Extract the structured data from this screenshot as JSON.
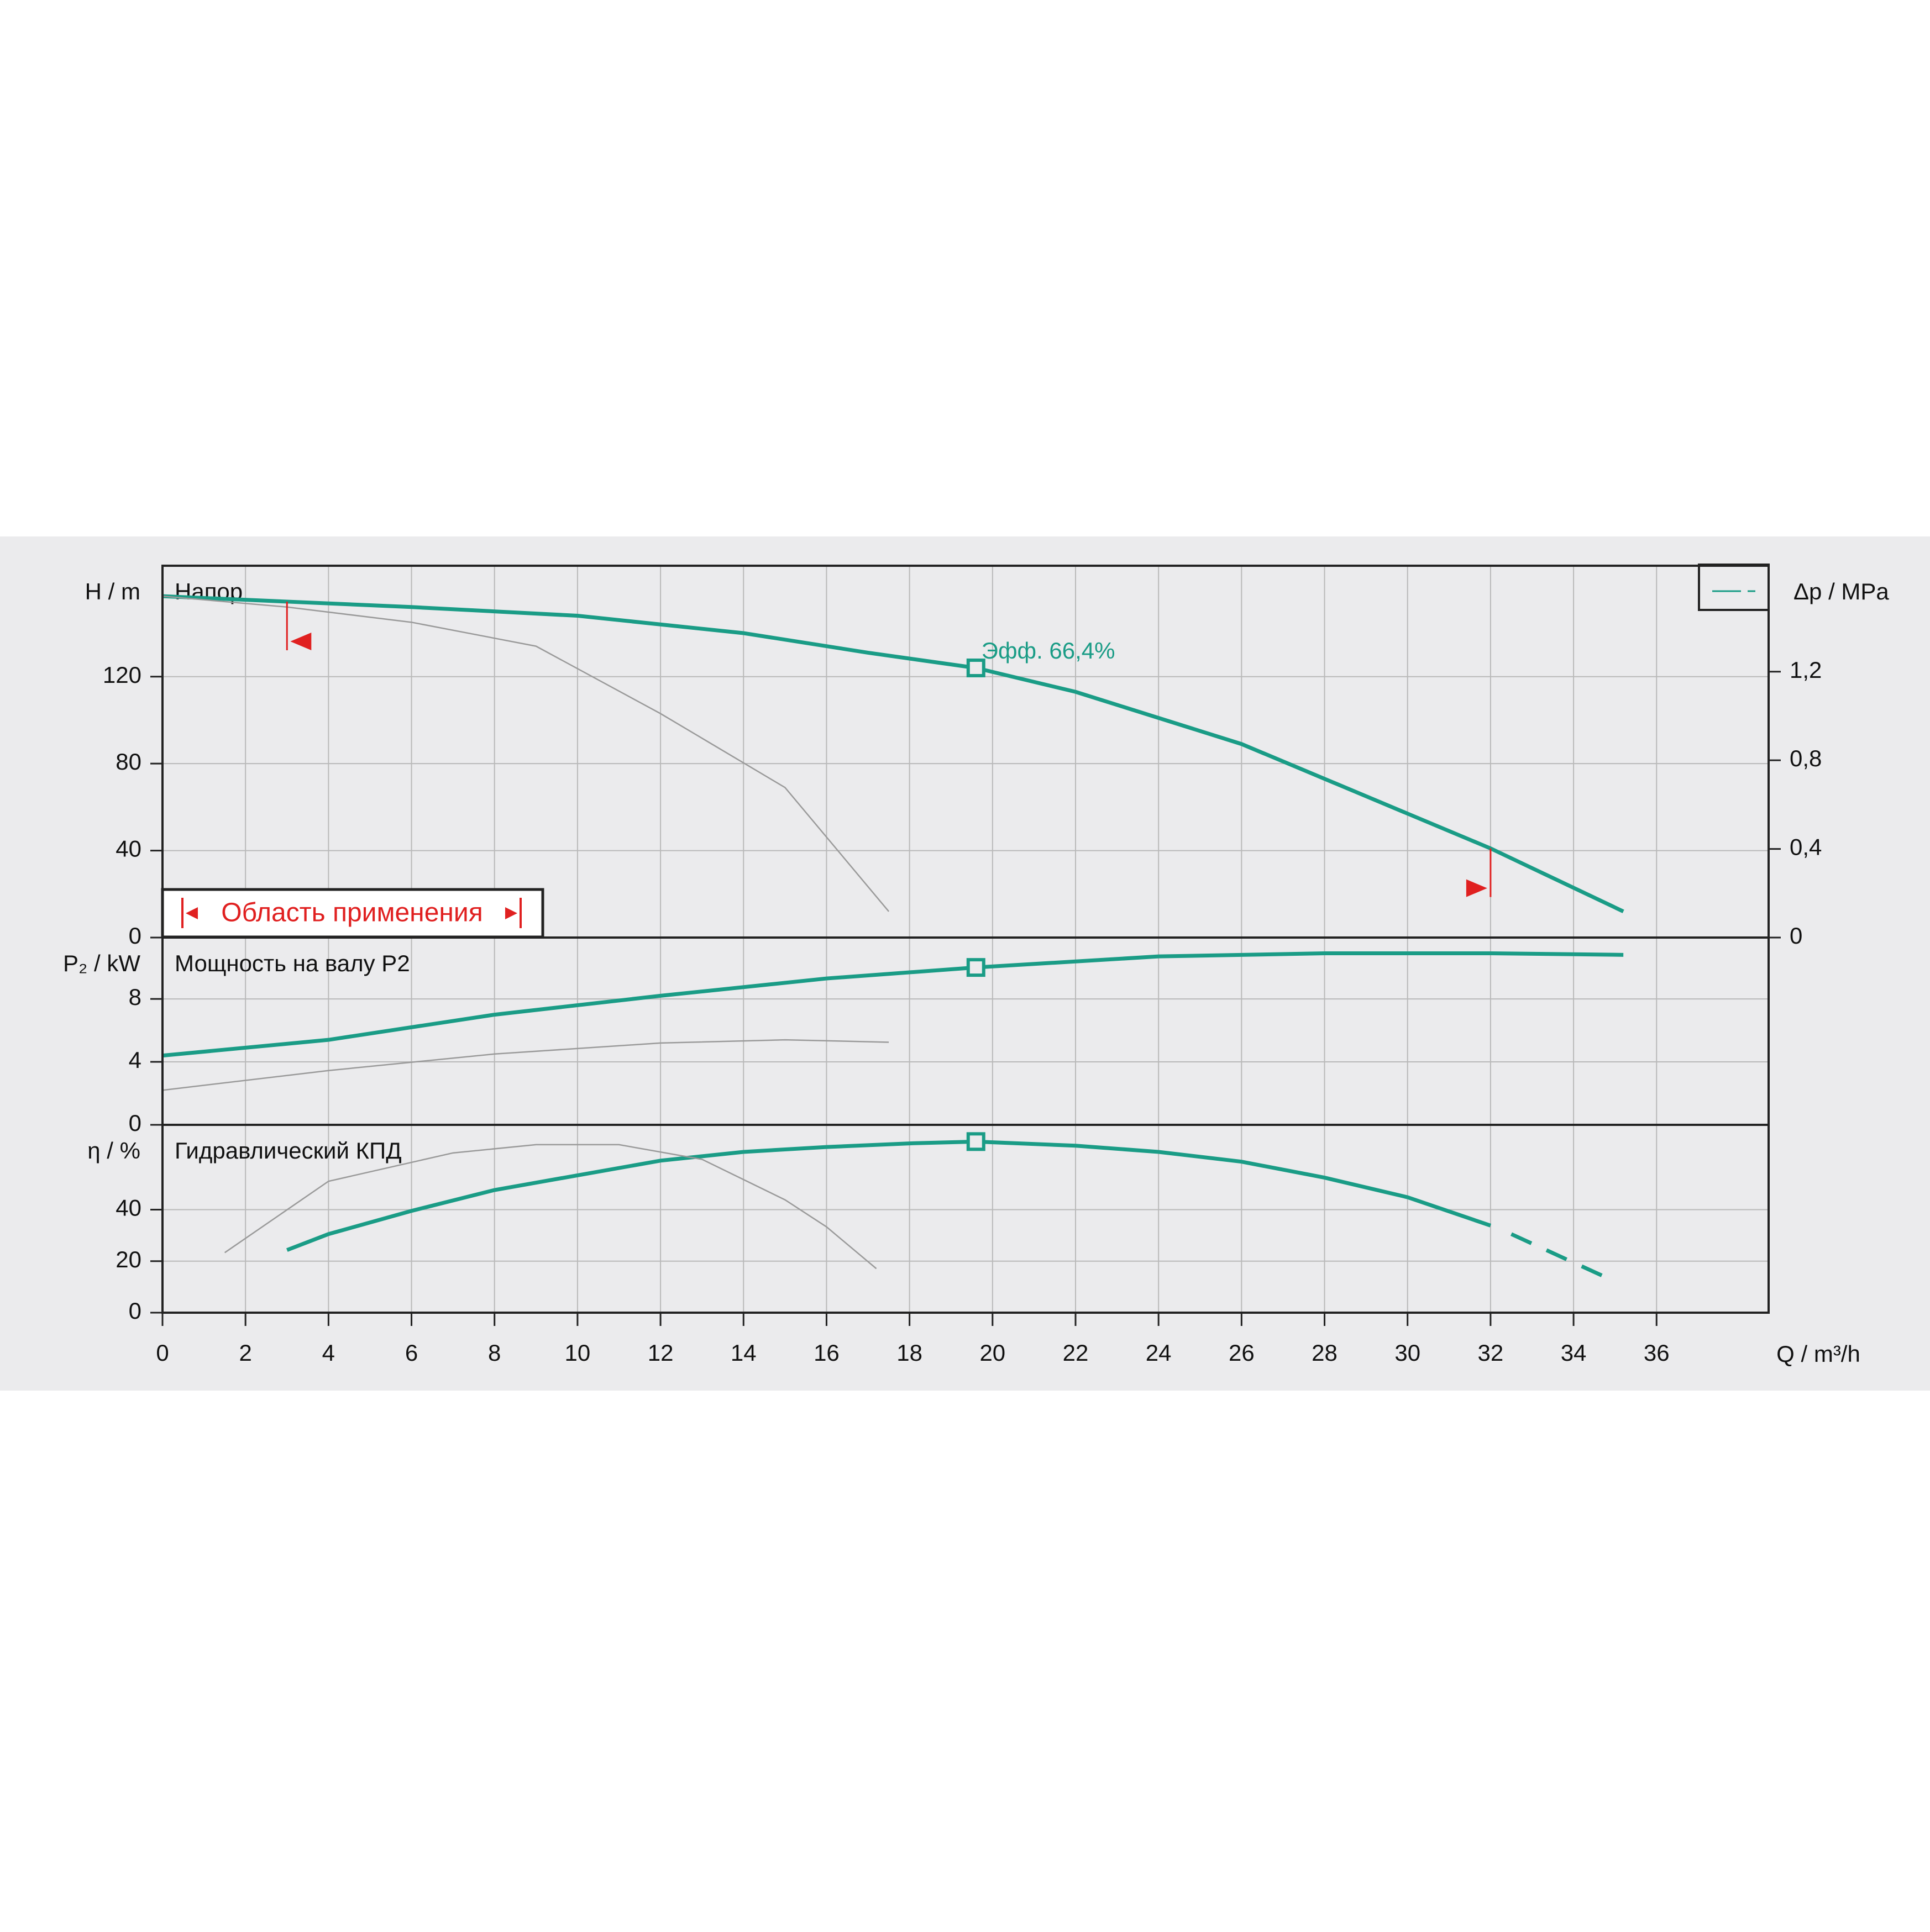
{
  "chart_data": {
    "type": "line",
    "x_label": "Q / m³/h",
    "xlim": [
      0,
      38.7
    ],
    "xticks": [
      0,
      2,
      4,
      6,
      8,
      10,
      12,
      14,
      16,
      18,
      20,
      22,
      24,
      26,
      28,
      30,
      32,
      34,
      36
    ],
    "grid": true,
    "panels": [
      {
        "title": "Напор",
        "y_label": "H / m",
        "ylim": [
          0,
          171
        ],
        "yticks": [
          0,
          40,
          80,
          120
        ],
        "y2_label": "Δp / MPa",
        "y2lim": [
          0,
          1.678
        ],
        "y2ticks": [
          0,
          {
            "value": 0.4,
            "label": "0,4"
          },
          {
            "value": 0.8,
            "label": "0,8"
          },
          {
            "value": 1.2,
            "label": "1,2"
          }
        ],
        "series": [
          {
            "color": "#1a9c86",
            "x": [
              0,
              3,
              6,
              10,
              14,
              17,
              19.6,
              22,
              26,
              30,
              32,
              35.2
            ],
            "values": [
              157,
              154.5,
              152,
              148,
              140,
              131,
              124,
              113,
              89,
              57,
              41,
              12
            ]
          },
          {
            "color": "#9a9a9a",
            "x": [
              0,
              3,
              6,
              9,
              12,
              15,
              17.5
            ],
            "values": [
              157,
              152,
              145,
              134,
              103,
              69,
              12
            ]
          }
        ],
        "duty_point": {
          "x": 19.6,
          "value": 124
        },
        "annotation": "Эфф.  66,4%"
      },
      {
        "title": "Мощность на валу P2",
        "y_label": "P₂ / kW",
        "ylim": [
          0,
          11.9
        ],
        "yticks": [
          0,
          4,
          8
        ],
        "series": [
          {
            "color": "#1a9c86",
            "x": [
              0,
              4,
              8,
              12,
              16,
              19.6,
              24,
              28,
              32,
              35.2
            ],
            "values": [
              4.4,
              5.4,
              7,
              8.2,
              9.3,
              10,
              10.7,
              10.9,
              10.9,
              10.8
            ]
          },
          {
            "color": "#9a9a9a",
            "x": [
              0,
              4,
              8,
              12,
              15,
              17.5
            ],
            "values": [
              2.2,
              3.45,
              4.5,
              5.2,
              5.4,
              5.25
            ]
          }
        ],
        "duty_point": {
          "x": 19.6,
          "value": 10
        }
      },
      {
        "title": "Гидравлический КПД",
        "y_label": "η / %",
        "ylim": [
          0,
          72.9
        ],
        "yticks": [
          0,
          20,
          40
        ],
        "series": [
          {
            "color": "#1a9c86",
            "x": [
              3,
              4,
              6,
              8,
              10,
              12,
              14,
              16,
              18,
              19.6,
              22,
              24,
              26,
              28,
              30,
              32
            ],
            "values": [
              24.3,
              30.5,
              39.5,
              47.6,
              53.3,
              59,
              62.4,
              64.3,
              65.7,
              66.4,
              64.8,
              62.4,
              58.6,
              52.4,
              44.8,
              33.8
            ]
          },
          {
            "color": "#1a9c86",
            "dash": true,
            "x": [
              32.5,
              34.7
            ],
            "values": [
              30.5,
              14.3
            ]
          },
          {
            "color": "#9a9a9a",
            "x": [
              1.5,
              4,
              7,
              9,
              11,
              13,
              15,
              16,
              17.2
            ],
            "values": [
              23.3,
              51,
              62,
              65.2,
              65.2,
              59.5,
              43.8,
              33.3,
              17.1
            ]
          }
        ],
        "duty_point": {
          "x": 19.6,
          "value": 66.4
        }
      }
    ],
    "operating_range": {
      "label": "Область применения",
      "x": [
        3,
        32
      ]
    }
  }
}
